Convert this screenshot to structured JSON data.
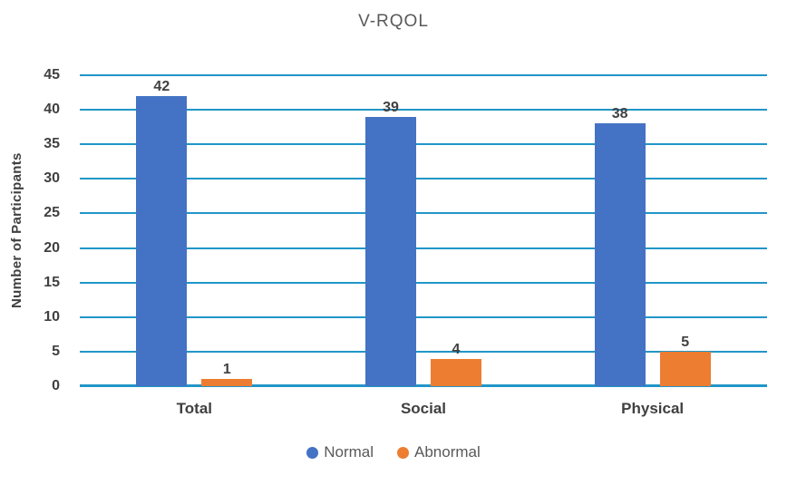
{
  "chart_data": {
    "type": "bar",
    "title": "V-RQOL",
    "ylabel": "Number of Participants",
    "xlabel": "",
    "categories": [
      "Total",
      "Social",
      "Physical"
    ],
    "series": [
      {
        "name": "Normal",
        "color": "#4472C4",
        "values": [
          42,
          39,
          38
        ]
      },
      {
        "name": "Abnormal",
        "color": "#ED7D31",
        "values": [
          1,
          4,
          5
        ]
      }
    ],
    "ylim": [
      0,
      45
    ],
    "ytick_step": 5,
    "yticks": [
      45,
      40,
      35,
      30,
      25,
      20,
      15,
      10,
      5,
      0
    ],
    "grid": "horizontal",
    "gridline_color": "#2196C8",
    "legend_position": "bottom",
    "text_color": "#404040",
    "title_color": "#595959"
  }
}
